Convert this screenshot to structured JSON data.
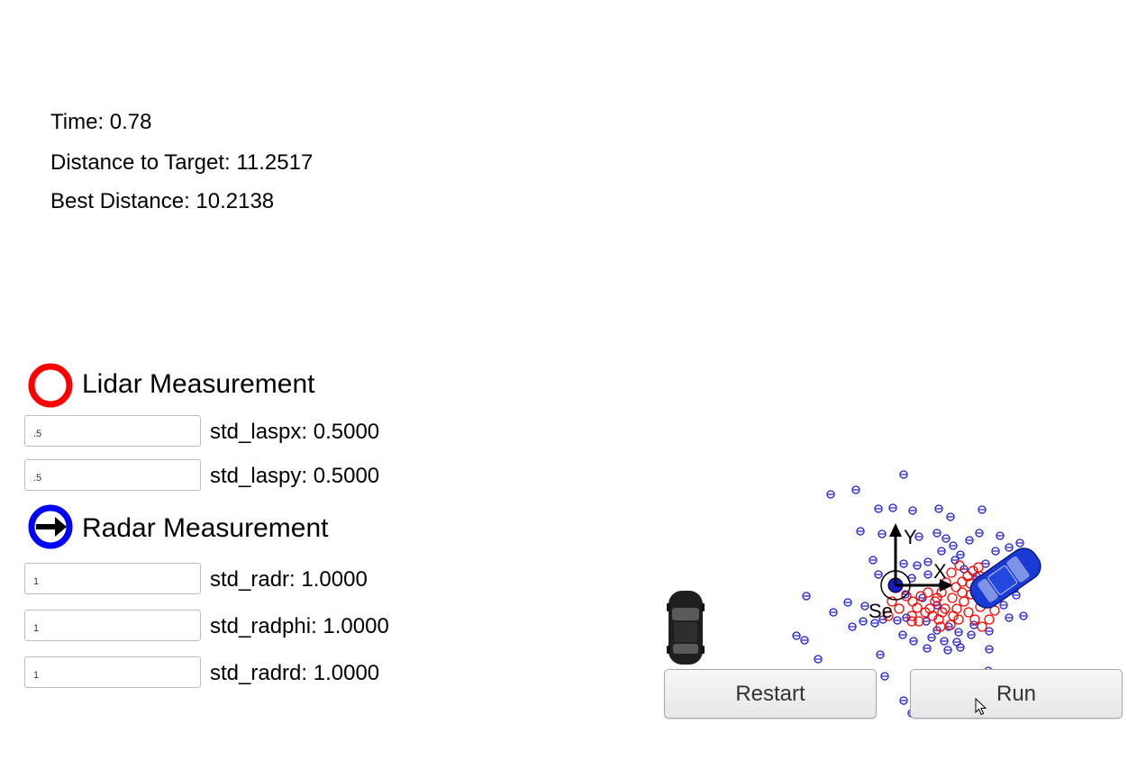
{
  "stats": {
    "time_label": "Time: 0.78",
    "distance_label": "Distance to Target: 11.2517",
    "best_label": "Best Distance: 10.2138"
  },
  "lidar": {
    "title": "Lidar Measurement",
    "icon": "red-ring-icon",
    "color": "#ff0000",
    "params": [
      {
        "value": ".5",
        "label": "std_laspx: 0.5000"
      },
      {
        "value": ".5",
        "label": "std_laspy: 0.5000"
      }
    ]
  },
  "radar": {
    "title": "Radar Measurement",
    "icon": "blue-ring-arrow-icon",
    "color": "#0000ff",
    "params": [
      {
        "value": "1",
        "label": "std_radr: 1.0000"
      },
      {
        "value": "1",
        "label": "std_radphi: 1.0000"
      },
      {
        "value": "1",
        "label": "std_radrd: 1.0000"
      }
    ]
  },
  "axes": {
    "y_label": "Y",
    "x_label": "X",
    "origin_label": "Se"
  },
  "buttons": {
    "restart": "Restart",
    "run": "Run"
  },
  "colors": {
    "lidar_marker": "#ff0000",
    "radar_marker": "#1a1acc",
    "target_car": "#1a3ad6",
    "hunter_car": "#222222"
  }
}
